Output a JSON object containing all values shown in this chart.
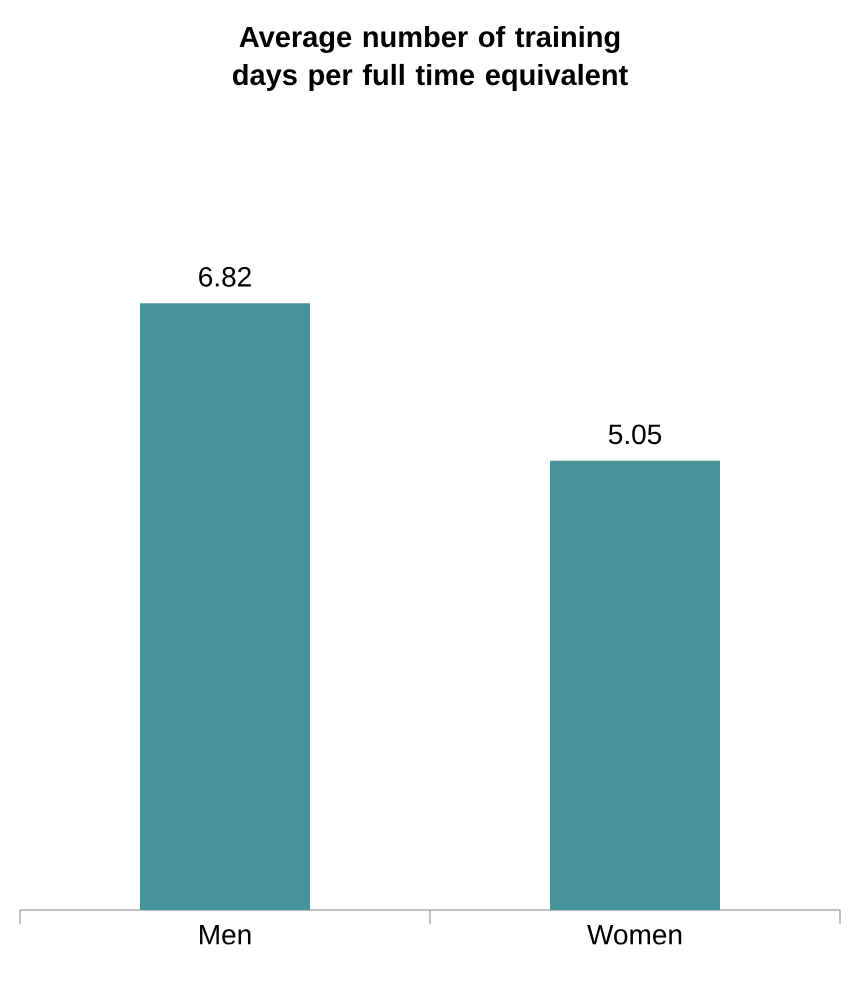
{
  "chart_data": {
    "type": "bar",
    "title": "Average number of training days per full time equivalent",
    "categories": [
      "Men",
      "Women"
    ],
    "values": [
      6.82,
      5.05
    ],
    "color": "#44949a",
    "data_labels": true
  }
}
